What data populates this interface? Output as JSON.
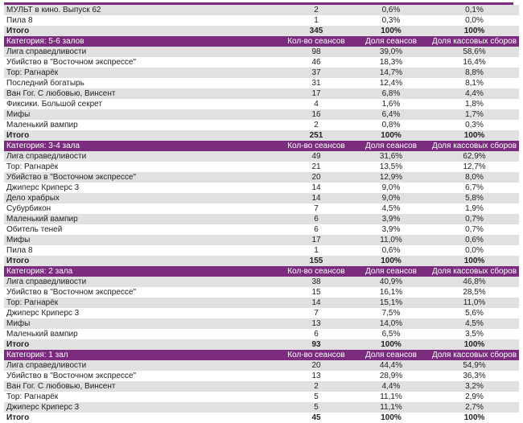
{
  "colors": {
    "header": "#7b2c7e",
    "stripe": "#e1e1e1"
  },
  "total_label": "Итого",
  "sections": [
    {
      "header": null,
      "rows": [
        [
          "МУЛЬТ в кино. Выпуск 62",
          "2",
          "0,6%",
          "0,1%"
        ],
        [
          "Пила 8",
          "1",
          "0,3%",
          "0,0%"
        ]
      ],
      "total": [
        "345",
        "100%",
        "100%"
      ]
    },
    {
      "header": [
        "Категория: 5-6 залов",
        "Кол-во сеансов",
        "Доля сеансов",
        "Доля кассовых сборов"
      ],
      "rows": [
        [
          "Лига справедливости",
          "98",
          "39,0%",
          "58,6%"
        ],
        [
          "Убийство в \"Восточном экспрессе\"",
          "46",
          "18,3%",
          "16,4%"
        ],
        [
          "Тор: Рагнарёк",
          "37",
          "14,7%",
          "8,8%"
        ],
        [
          "Последний богатырь",
          "31",
          "12,4%",
          "8,1%"
        ],
        [
          "Ван Гог. С любовью, Винсент",
          "17",
          "6,8%",
          "4,4%"
        ],
        [
          "Фиксики. Большой секрет",
          "4",
          "1,6%",
          "1,8%"
        ],
        [
          "Мифы",
          "16",
          "6,4%",
          "1,7%"
        ],
        [
          "Маленький вампир",
          "2",
          "0,8%",
          "0,3%"
        ]
      ],
      "total": [
        "251",
        "100%",
        "100%"
      ]
    },
    {
      "header": [
        "Категория: 3-4 зала",
        "Кол-во сеансов",
        "Доля сеансов",
        "Доля кассовых сборов"
      ],
      "rows": [
        [
          "Лига справедливости",
          "49",
          "31,6%",
          "62,9%"
        ],
        [
          "Тор: Рагнарёк",
          "21",
          "13,5%",
          "12,7%"
        ],
        [
          "Убийство в \"Восточном экспрессе\"",
          "20",
          "12,9%",
          "8,0%"
        ],
        [
          "Джиперс Криперс 3",
          "14",
          "9,0%",
          "6,7%"
        ],
        [
          "Дело храбрых",
          "14",
          "9,0%",
          "5,8%"
        ],
        [
          "Субурбикон",
          "7",
          "4,5%",
          "1,9%"
        ],
        [
          "Маленький вампир",
          "6",
          "3,9%",
          "0,7%"
        ],
        [
          "Обитель теней",
          "6",
          "3,9%",
          "0,7%"
        ],
        [
          "Мифы",
          "17",
          "11,0%",
          "0,6%"
        ],
        [
          "Пила 8",
          "1",
          "0,6%",
          "0,0%"
        ]
      ],
      "total": [
        "155",
        "100%",
        "100%"
      ]
    },
    {
      "header": [
        "Категория: 2 зала",
        "Кол-во сеансов",
        "Доля сеансов",
        "Доля кассовых сборов"
      ],
      "rows": [
        [
          "Лига справедливости",
          "38",
          "40,9%",
          "46,8%"
        ],
        [
          "Убийство в \"Восточном экспрессе\"",
          "15",
          "16,1%",
          "28,5%"
        ],
        [
          "Тор: Рагнарёк",
          "14",
          "15,1%",
          "11,0%"
        ],
        [
          "Джиперс Криперс 3",
          "7",
          "7,5%",
          "5,6%"
        ],
        [
          "Мифы",
          "13",
          "14,0%",
          "4,5%"
        ],
        [
          "Маленький вампир",
          "6",
          "6,5%",
          "3,5%"
        ]
      ],
      "total": [
        "93",
        "100%",
        "100%"
      ]
    },
    {
      "header": [
        "Категория: 1 зал",
        "Кол-во сеансов",
        "Доля сеансов",
        "Доля кассовых сборов"
      ],
      "rows": [
        [
          "Лига справедливости",
          "20",
          "44,4%",
          "54,9%"
        ],
        [
          "Убийство в \"Восточном экспрессе\"",
          "13",
          "28,9%",
          "36,3%"
        ],
        [
          "Ван Гог. С любовью, Винсент",
          "2",
          "4,4%",
          "3,2%"
        ],
        [
          "Тор: Рагнарёк",
          "5",
          "11,1%",
          "2,9%"
        ],
        [
          "Джиперс Криперс 3",
          "5",
          "11,1%",
          "2,7%"
        ]
      ],
      "total": [
        "45",
        "100%",
        "100%"
      ]
    }
  ]
}
